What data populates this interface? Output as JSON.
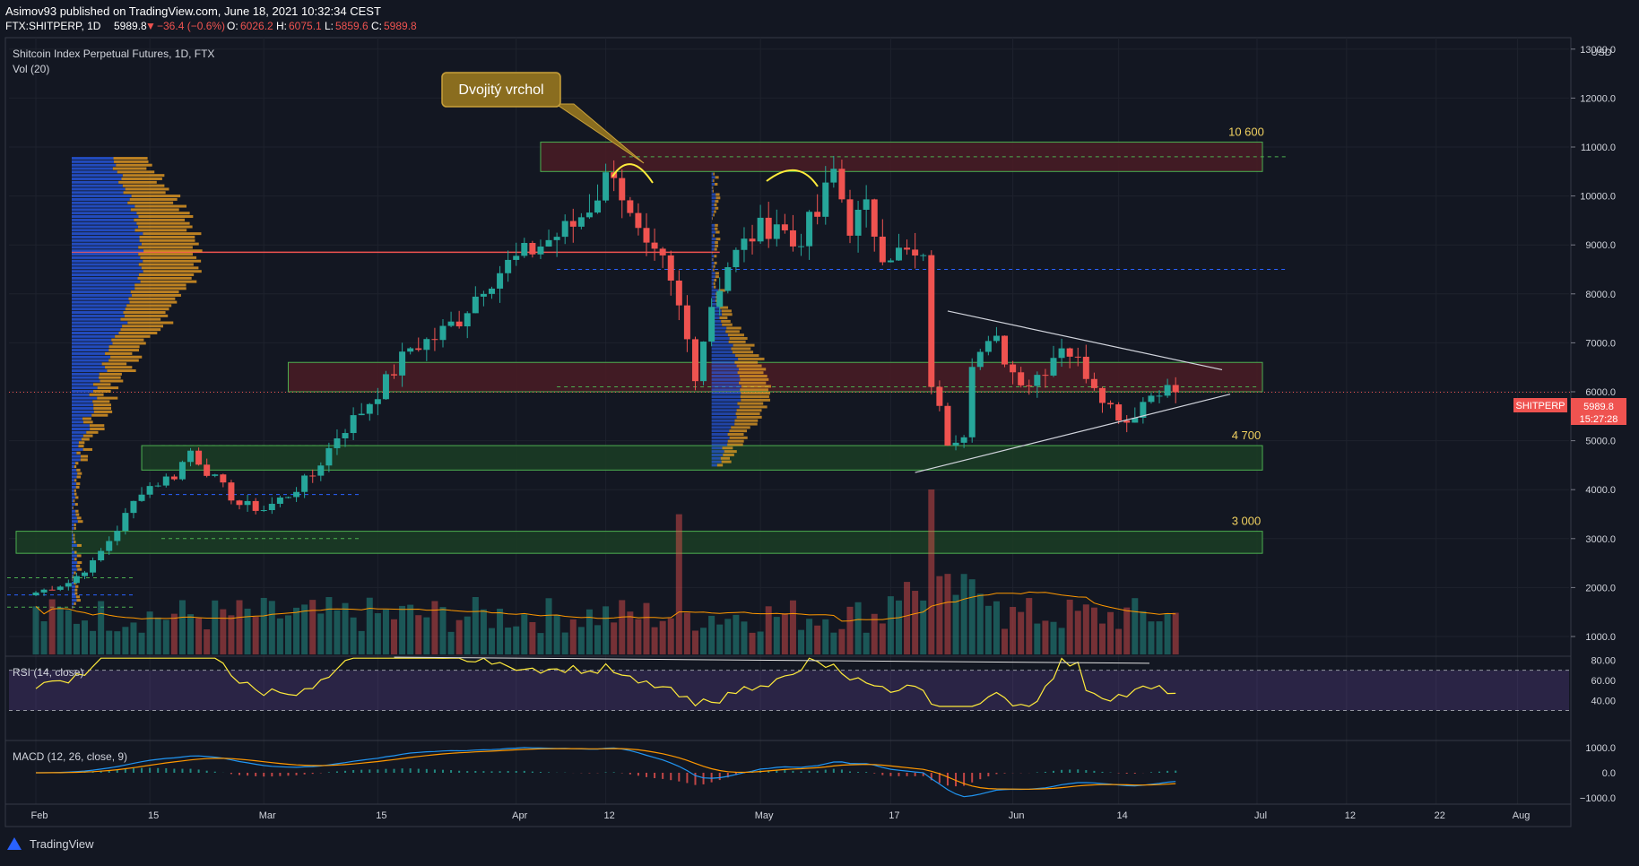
{
  "header": {
    "line1": "Asimov93 published on TradingView.com, June 18, 2021 10:32:34 CEST",
    "symbol": "FTX:SHITPERP, 1D",
    "last": "5989.8",
    "change": "−36.4 (−0.6%)",
    "o_label": "O:",
    "o": "6026.2",
    "h_label": "H:",
    "h": "6075.1",
    "l_label": "L:",
    "l": "5859.6",
    "c_label": "C:",
    "c": "5989.8"
  },
  "legend": {
    "title": "Shitcoin Index Perpetual Futures, 1D, FTX",
    "vol": "Vol (20)"
  },
  "annotation": {
    "text": "Dvojitý vrchol"
  },
  "currency": "USD",
  "price_badge": {
    "symbol": "SHITPERP",
    "price": "5989.8",
    "countdown": "15:27:28"
  },
  "panes": {
    "rsi_label": "RSI (14, close)",
    "macd_label": "MACD (12, 26, close, 9)"
  },
  "footer": {
    "brand": "TradingView"
  },
  "colors": {
    "up": "#26a69a",
    "down": "#ef5350",
    "zone_green": "#2e7d32",
    "zone_red": "#7f1d1d",
    "level_text": "#f0d060",
    "rsi": "#ffeb3b",
    "macd": "#2196f3",
    "signal": "#ff9800"
  },
  "chart_data": [
    {
      "type": "candlestick",
      "title": "Shitcoin Index Perpetual Futures, 1D, FTX",
      "y_axis": {
        "ticks": [
          1000,
          2000,
          3000,
          4000,
          5000,
          6000,
          7000,
          8000,
          9000,
          10000,
          11000,
          12000,
          13000
        ],
        "tick_labels": [
          "1000.0",
          "2000.0",
          "3000.0",
          "4000.0",
          "5000.0",
          "6000.0",
          "7000.0",
          "8000.0",
          "9000.0",
          "10000.0",
          "11000.0",
          "12000.0",
          "13000.0"
        ],
        "range": [
          850,
          13200
        ]
      },
      "x_axis": {
        "tick_labels": [
          "Feb",
          "15",
          "Mar",
          "15",
          "Apr",
          "12",
          "May",
          "17",
          "Jun",
          "14",
          "Jul",
          "12",
          "22",
          "Aug"
        ],
        "tick_days": [
          0,
          14,
          28,
          42,
          59,
          70,
          89,
          105,
          120,
          133,
          150,
          161,
          172,
          182
        ]
      },
      "ohlc_sample": [
        {
          "day": 0,
          "o": 1850,
          "h": 2020,
          "l": 1780,
          "c": 1980
        },
        {
          "day": 10,
          "o": 2800,
          "h": 3400,
          "l": 2750,
          "c": 3300
        },
        {
          "day": 19,
          "o": 4500,
          "h": 4950,
          "l": 4200,
          "c": 4800
        },
        {
          "day": 28,
          "o": 3800,
          "h": 4000,
          "l": 3500,
          "c": 3600
        },
        {
          "day": 40,
          "o": 5000,
          "h": 5700,
          "l": 4900,
          "c": 5600
        },
        {
          "day": 55,
          "o": 7700,
          "h": 8300,
          "l": 7600,
          "c": 8200
        },
        {
          "day": 71,
          "o": 9800,
          "h": 10800,
          "l": 9500,
          "c": 10500
        },
        {
          "day": 80,
          "o": 8000,
          "h": 8300,
          "l": 6000,
          "c": 6200
        },
        {
          "day": 98,
          "o": 10200,
          "h": 10800,
          "l": 9900,
          "c": 10500
        },
        {
          "day": 110,
          "o": 8800,
          "h": 9000,
          "l": 5800,
          "c": 6500
        },
        {
          "day": 115,
          "o": 5500,
          "h": 6800,
          "l": 4700,
          "c": 6700
        },
        {
          "day": 140,
          "o": 6000,
          "h": 6100,
          "l": 5850,
          "c": 5990
        }
      ],
      "horizontal_levels": [
        {
          "label": "10 600",
          "low": 10500,
          "high": 11100
        },
        {
          "label": "",
          "low": 6000,
          "high": 6600
        },
        {
          "label": "4 700",
          "low": 4400,
          "high": 4900
        },
        {
          "label": "3 000",
          "low": 2700,
          "high": 3150
        }
      ],
      "poc_line": 8850,
      "last_price": 5989.8
    },
    {
      "type": "bar",
      "title": "Vol (20)",
      "note": "relative volume bars with moving average"
    },
    {
      "type": "line",
      "title": "RSI (14, close)",
      "y_ticks": [
        40,
        60,
        80
      ],
      "y_tick_labels": [
        "40.00",
        "60.00",
        "80.00"
      ],
      "bands": [
        30,
        70
      ]
    },
    {
      "type": "line",
      "title": "MACD (12, 26, close, 9)",
      "y_ticks": [
        -1000,
        0,
        1000
      ],
      "y_tick_labels": [
        "−1000.0",
        "0.0",
        "1000.0"
      ]
    }
  ]
}
